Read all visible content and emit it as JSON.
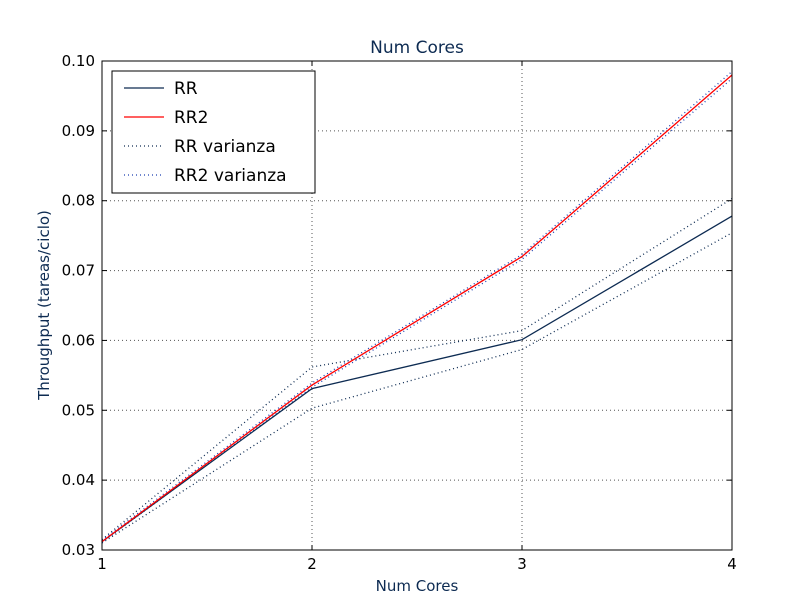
{
  "chart_data": {
    "type": "line",
    "title": "Num Cores",
    "xlabel": "Num Cores",
    "ylabel": "Throughput (tareas/ciclo)",
    "xlim": [
      1,
      4
    ],
    "ylim": [
      0.03,
      0.1
    ],
    "xticks": [
      1,
      2,
      3,
      4
    ],
    "xtick_labels": [
      "1",
      "2",
      "3",
      "4"
    ],
    "yticks": [
      0.03,
      0.04,
      0.05,
      0.06,
      0.07,
      0.08,
      0.09,
      0.1
    ],
    "ytick_labels": [
      "0.03",
      "0.04",
      "0.05",
      "0.06",
      "0.07",
      "0.08",
      "0.09",
      "0.10"
    ],
    "grid": true,
    "legend_position": "top-left",
    "x": [
      1,
      2,
      3,
      4
    ],
    "series": [
      {
        "name": "RR",
        "color": "#0d2b52",
        "style": "solid",
        "values": [
          0.0312,
          0.0531,
          0.0601,
          0.0778
        ]
      },
      {
        "name": "RR2",
        "color": "#ff0000",
        "style": "solid",
        "values": [
          0.0312,
          0.0536,
          0.072,
          0.098
        ]
      },
      {
        "name": "RR varianza",
        "color": "#0d2b52",
        "style": "dotted",
        "bands": [
          [
            0.0315,
            0.0562,
            0.0614,
            0.0803
          ],
          [
            0.031,
            0.0503,
            0.0587,
            0.0754
          ]
        ]
      },
      {
        "name": "RR2 varianza",
        "color": "#1a3fb0",
        "style": "dotted",
        "bands": [
          [
            0.0314,
            0.0539,
            0.0723,
            0.0985
          ],
          [
            0.0311,
            0.0533,
            0.0716,
            0.0975
          ]
        ]
      }
    ],
    "colors": {
      "title": "#0d2b52",
      "axis_label": "#0d2b52",
      "grid": "#555555"
    }
  }
}
